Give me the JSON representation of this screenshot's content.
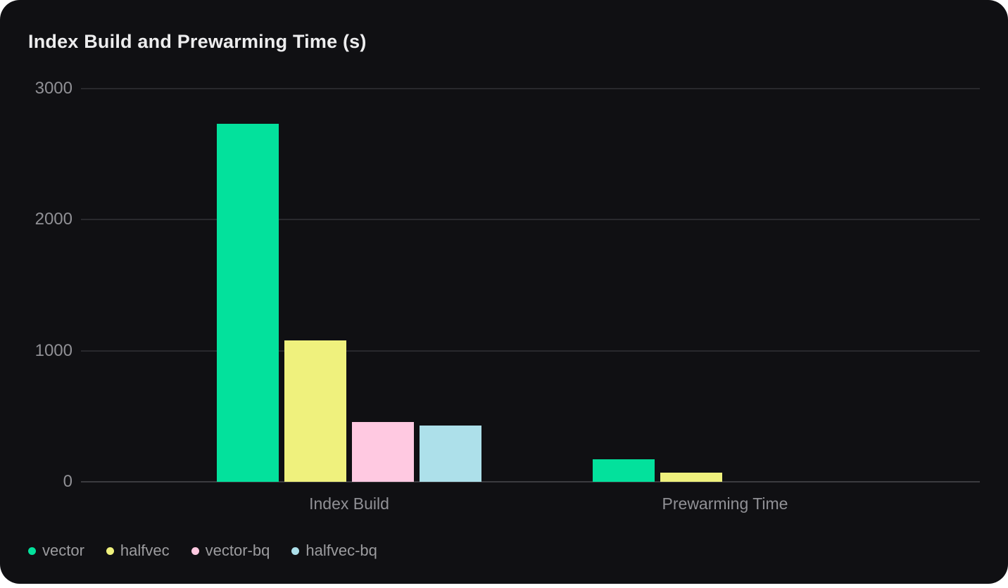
{
  "title": "Index Build and Prewarming Time (s)",
  "colors": {
    "page_background": "#ffffff",
    "card_background": "#101013",
    "title_text": "#ededee",
    "axis_text": "#909095",
    "legend_text": "#9c9c9f",
    "gridline": "#29292d",
    "zero_line": "#3b3b3f"
  },
  "chart_data": {
    "type": "bar",
    "title": "Index Build and Prewarming Time (s)",
    "unit": "s",
    "categories": [
      "Index Build",
      "Prewarming Time"
    ],
    "series": [
      {
        "name": "vector",
        "color": "#03E19C",
        "values": [
          2730,
          170
        ]
      },
      {
        "name": "halfvec",
        "color": "#EFF17D",
        "values": [
          1080,
          70
        ]
      },
      {
        "name": "vector-bq",
        "color": "#FFC9E1",
        "values": [
          455,
          0
        ]
      },
      {
        "name": "halfvec-bq",
        "color": "#ADE0EA",
        "values": [
          430,
          0
        ]
      }
    ],
    "ylim": [
      0,
      3000
    ],
    "yticks": [
      0,
      1000,
      2000,
      3000
    ],
    "grid": true,
    "legend_position": "bottom-left"
  }
}
